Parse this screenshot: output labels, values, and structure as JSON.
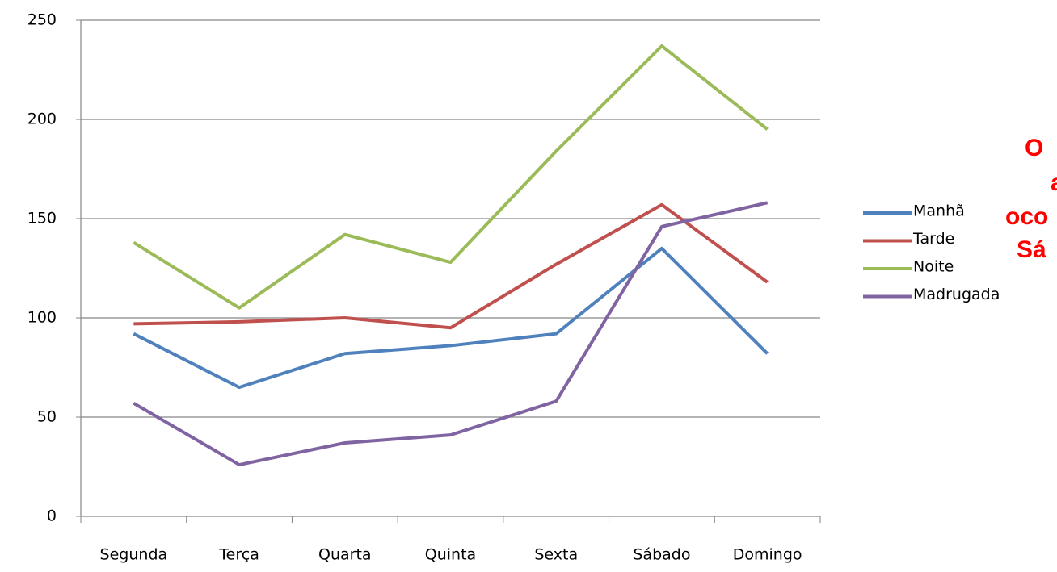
{
  "chart_data": {
    "type": "line",
    "categories": [
      "Segunda",
      "Terça",
      "Quarta",
      "Quinta",
      "Sexta",
      "Sábado",
      "Domingo"
    ],
    "series": [
      {
        "name": "Manhã",
        "color": "#4f81bd",
        "values": [
          92,
          65,
          82,
          86,
          92,
          135,
          82
        ]
      },
      {
        "name": "Tarde",
        "color": "#c0504d",
        "values": [
          97,
          98,
          100,
          95,
          127,
          157,
          118
        ]
      },
      {
        "name": "Noite",
        "color": "#9bbb59",
        "values": [
          138,
          105,
          142,
          128,
          184,
          237,
          195
        ]
      },
      {
        "name": "Madrugada",
        "color": "#8064a2",
        "values": [
          57,
          26,
          37,
          41,
          58,
          146,
          158
        ]
      }
    ],
    "ylim": [
      0,
      250
    ],
    "yticks": [
      0,
      50,
      100,
      150,
      200,
      250
    ],
    "grid": true,
    "legend": "right",
    "annotation": [
      "O",
      "a",
      "oco",
      "Sá"
    ]
  }
}
